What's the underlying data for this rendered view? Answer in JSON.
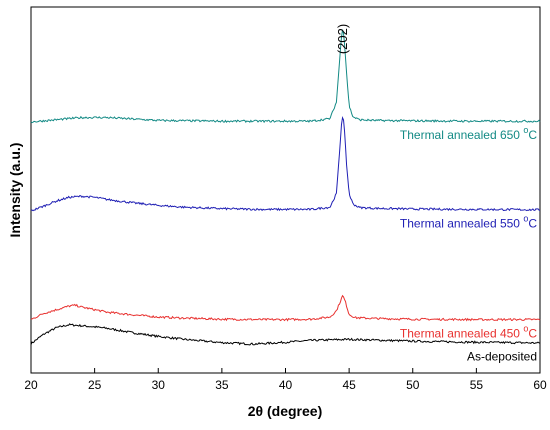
{
  "chart_data": {
    "type": "line",
    "title": "",
    "xlabel": "2θ (degree)",
    "ylabel": "Intensity (a.u.)",
    "xlim": [
      20,
      60
    ],
    "ylim": [
      0,
      100
    ],
    "x_ticks": [
      "20",
      "25",
      "30",
      "35",
      "40",
      "45",
      "50",
      "55",
      "60"
    ],
    "y_ticks_shown": false,
    "grid": false,
    "legend": "inline labels, right side above each trace",
    "annotations": [
      {
        "text": "(202)",
        "x": 44.5
      }
    ],
    "series": [
      {
        "name": "As-deposited",
        "label_main": "As-deposited",
        "label_sup": "",
        "label_unit": "",
        "color": "#000000",
        "x": [
          20,
          21,
          22,
          23,
          24,
          25,
          26,
          27,
          28,
          30,
          32,
          35,
          37.5,
          40,
          42,
          45,
          48,
          50,
          55,
          60
        ],
        "y": [
          8.0,
          10.6,
          12.4,
          13.2,
          12.9,
          12.6,
          12.2,
          11.6,
          11.0,
          10.0,
          9.2,
          8.3,
          7.9,
          8.4,
          8.9,
          9.2,
          8.9,
          8.7,
          8.4,
          8.2
        ]
      },
      {
        "name": "Thermal annealed 450 °C",
        "label_main": "Thermal annealed 450 ",
        "label_sup": "o",
        "label_unit": "C",
        "color": "#e8312f",
        "x": [
          20,
          21,
          22,
          23,
          23.5,
          24,
          25,
          26,
          28,
          30,
          32,
          35,
          38,
          40,
          42,
          43.5,
          44,
          44.3,
          44.5,
          44.7,
          45,
          45.5,
          47,
          50,
          55,
          60
        ],
        "y": [
          14.6,
          16.3,
          17.3,
          18.3,
          18.5,
          18.0,
          17.3,
          16.6,
          15.9,
          15.3,
          15.0,
          14.7,
          14.6,
          14.6,
          14.7,
          15.3,
          17.0,
          19.5,
          21.2,
          19.5,
          16.0,
          15.1,
          14.9,
          14.7,
          14.6,
          14.6
        ]
      },
      {
        "name": "Thermal annealed 550 °C",
        "label_main": "Thermal annealed 550 ",
        "label_sup": "o",
        "label_unit": "C",
        "color": "#1f1fb4",
        "x": [
          20,
          21,
          22,
          23,
          24,
          25,
          26,
          28,
          30,
          32,
          35,
          38,
          40,
          42,
          43.5,
          44,
          44.2,
          44.4,
          44.5,
          44.6,
          44.8,
          45,
          45.3,
          45.8,
          47,
          50,
          55,
          60
        ],
        "y": [
          44.3,
          45.6,
          47.0,
          48.0,
          48.3,
          48.0,
          47.4,
          46.5,
          45.8,
          45.3,
          44.9,
          44.7,
          44.7,
          44.7,
          45.3,
          49.0,
          58.0,
          68.0,
          70.5,
          68.0,
          57.0,
          49.0,
          46.2,
          45.2,
          45.0,
          44.8,
          44.7,
          44.6
        ]
      },
      {
        "name": "Thermal annealed 650 °C",
        "label_main": "Thermal annealed 650 ",
        "label_sup": "o",
        "label_unit": "C",
        "color": "#138a85",
        "x": [
          20,
          22,
          24,
          26,
          28,
          30,
          35,
          40,
          42,
          43.5,
          44,
          44.2,
          44.4,
          44.5,
          44.6,
          44.8,
          45,
          45.3,
          45.8,
          47,
          50,
          55,
          60
        ],
        "y": [
          68.6,
          69.2,
          69.8,
          69.8,
          69.4,
          69.0,
          68.8,
          68.8,
          68.8,
          69.5,
          74.0,
          83.0,
          92.0,
          94.5,
          92.0,
          82.0,
          73.0,
          70.0,
          69.2,
          69.0,
          68.9,
          68.8,
          68.8
        ]
      }
    ]
  }
}
